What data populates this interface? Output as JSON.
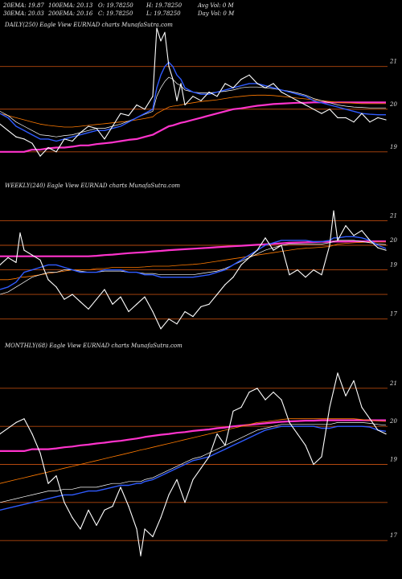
{
  "header": {
    "row1": [
      "20EMA: 19.87",
      "100EMA: 20.13",
      "O: 19.78250",
      "H: 19.78250",
      "Avg Vol: 0  M"
    ],
    "row2": [
      "30EMA: 20.03",
      "200EMA: 20.16",
      "C: 19.78250",
      "L: 19.78250",
      "Day Vol: 0  M"
    ]
  },
  "colors": {
    "background": "#000000",
    "price": "#ffffff",
    "ema_fast": "#2f5bff",
    "ema_mid": "#ffffff",
    "ema_slow": "#ff7a00",
    "ema_long": "#ff33cc",
    "grid": "#b4480e"
  },
  "chart_data": [
    {
      "type": "line",
      "title": "DAILY(250) Eagle  View  EURNAD charts MunafaSutra.com",
      "yticks": [
        "21",
        "20",
        "19"
      ],
      "ylim": [
        18.6,
        21.9
      ],
      "x": [
        0,
        10,
        20,
        30,
        40,
        50,
        60,
        70,
        80,
        90,
        100,
        110,
        120,
        130,
        140,
        150,
        160,
        170,
        180,
        190,
        195,
        200,
        205,
        210,
        215,
        220,
        225,
        230,
        240,
        250,
        260,
        270,
        280,
        290,
        300,
        310,
        320,
        330,
        340,
        350,
        360,
        370,
        380,
        390,
        400,
        410,
        420,
        430,
        440,
        450,
        460,
        470,
        480
      ],
      "series": [
        {
          "values": [
            19.65,
            19.5,
            19.35,
            19.3,
            19.2,
            18.9,
            19.1,
            19.0,
            19.3,
            19.25,
            19.45,
            19.6,
            19.55,
            19.3,
            19.6,
            19.9,
            19.85,
            20.1,
            20.0,
            20.3,
            21.9,
            21.6,
            21.8,
            21.0,
            20.7,
            20.2,
            20.6,
            20.1,
            20.3,
            20.2,
            20.4,
            20.3,
            20.6,
            20.5,
            20.7,
            20.8,
            20.6,
            20.5,
            20.6,
            20.4,
            20.3,
            20.2,
            20.1,
            20.0,
            19.9,
            20.0,
            19.8,
            19.8,
            19.7,
            19.9,
            19.7,
            19.8,
            19.75
          ]
        },
        {
          "values": [
            19.9,
            19.8,
            19.6,
            19.5,
            19.4,
            19.3,
            19.3,
            19.25,
            19.3,
            19.35,
            19.4,
            19.45,
            19.5,
            19.5,
            19.55,
            19.6,
            19.7,
            19.8,
            19.9,
            20.0,
            20.5,
            20.8,
            21.0,
            21.1,
            21.0,
            20.8,
            20.7,
            20.5,
            20.4,
            20.35,
            20.35,
            20.4,
            20.45,
            20.5,
            20.55,
            20.6,
            20.6,
            20.55,
            20.5,
            20.45,
            20.4,
            20.35,
            20.3,
            20.2,
            20.15,
            20.1,
            20.05,
            20.0,
            19.95,
            19.9,
            19.88,
            19.87,
            19.87
          ]
        },
        {
          "values": [
            19.95,
            19.85,
            19.7,
            19.6,
            19.5,
            19.4,
            19.38,
            19.35,
            19.38,
            19.4,
            19.45,
            19.5,
            19.55,
            19.55,
            19.6,
            19.65,
            19.72,
            19.8,
            19.88,
            19.95,
            20.3,
            20.5,
            20.65,
            20.75,
            20.7,
            20.6,
            20.55,
            20.45,
            20.4,
            20.38,
            20.38,
            20.4,
            20.42,
            20.45,
            20.5,
            20.52,
            20.52,
            20.5,
            20.48,
            20.45,
            20.42,
            20.38,
            20.33,
            20.25,
            20.2,
            20.15,
            20.1,
            20.07,
            20.05,
            20.04,
            20.03,
            20.03,
            20.03
          ]
        },
        {
          "values": [
            19.9,
            19.85,
            19.8,
            19.75,
            19.7,
            19.65,
            19.62,
            19.6,
            19.58,
            19.58,
            19.6,
            19.62,
            19.64,
            19.66,
            19.68,
            19.7,
            19.72,
            19.75,
            19.78,
            19.82,
            19.9,
            19.95,
            20.0,
            20.05,
            20.07,
            20.08,
            20.1,
            20.12,
            20.15,
            20.18,
            20.2,
            20.22,
            20.25,
            20.28,
            20.3,
            20.32,
            20.33,
            20.33,
            20.32,
            20.3,
            20.28,
            20.26,
            20.24,
            20.22,
            20.2,
            20.18,
            20.16,
            20.15,
            20.14,
            20.13,
            20.13,
            20.13,
            20.13
          ]
        },
        {
          "values": [
            19.0,
            19.0,
            19.0,
            19.0,
            19.05,
            19.05,
            19.08,
            19.1,
            19.1,
            19.12,
            19.15,
            19.15,
            19.18,
            19.2,
            19.22,
            19.25,
            19.28,
            19.3,
            19.35,
            19.4,
            19.45,
            19.5,
            19.55,
            19.6,
            19.62,
            19.65,
            19.68,
            19.7,
            19.75,
            19.8,
            19.85,
            19.9,
            19.95,
            20.0,
            20.02,
            20.05,
            20.08,
            20.1,
            20.12,
            20.13,
            20.14,
            20.15,
            20.15,
            20.16,
            20.16,
            20.16,
            20.16,
            20.16,
            20.16,
            20.16,
            20.16,
            20.16,
            20.16
          ]
        }
      ]
    },
    {
      "type": "line",
      "title": "WEEKLY(240) Eagle  View  EURNAD charts MunafaSutra.com",
      "yticks": [
        "21",
        "20",
        "19",
        "17"
      ],
      "ylim": [
        16.4,
        21.8
      ],
      "x": [
        0,
        10,
        20,
        25,
        30,
        40,
        50,
        60,
        70,
        80,
        90,
        100,
        110,
        120,
        130,
        140,
        150,
        160,
        170,
        180,
        190,
        200,
        210,
        220,
        230,
        240,
        250,
        260,
        270,
        280,
        290,
        300,
        310,
        320,
        330,
        340,
        350,
        360,
        370,
        380,
        390,
        400,
        410,
        415,
        420,
        430,
        440,
        450,
        460,
        470,
        480
      ],
      "series": [
        {
          "values": [
            19.2,
            19.5,
            19.3,
            20.5,
            19.8,
            19.6,
            19.4,
            18.6,
            18.3,
            17.8,
            18.0,
            17.7,
            17.4,
            17.8,
            18.2,
            17.6,
            17.9,
            17.3,
            17.6,
            17.9,
            17.3,
            16.6,
            17.0,
            16.8,
            17.3,
            17.1,
            17.5,
            17.6,
            18.0,
            18.4,
            18.7,
            19.2,
            19.5,
            19.8,
            20.3,
            19.8,
            20.0,
            18.8,
            19.0,
            18.7,
            19.0,
            18.8,
            20.0,
            21.4,
            20.2,
            20.8,
            20.4,
            20.6,
            20.2,
            19.9,
            19.8
          ]
        },
        {
          "values": [
            18.2,
            18.3,
            18.5,
            18.7,
            18.9,
            19.0,
            19.1,
            19.2,
            19.2,
            19.1,
            19.0,
            18.9,
            18.9,
            18.9,
            19.0,
            19.0,
            19.0,
            18.9,
            18.9,
            18.8,
            18.8,
            18.7,
            18.7,
            18.7,
            18.7,
            18.7,
            18.75,
            18.8,
            18.9,
            19.0,
            19.2,
            19.4,
            19.6,
            19.8,
            20.0,
            20.1,
            20.2,
            20.2,
            20.2,
            20.2,
            20.15,
            20.15,
            20.2,
            20.3,
            20.3,
            20.35,
            20.35,
            20.3,
            20.2,
            20.0,
            19.87
          ]
        },
        {
          "values": [
            18.0,
            18.1,
            18.3,
            18.4,
            18.5,
            18.7,
            18.8,
            18.9,
            18.9,
            19.0,
            19.0,
            18.95,
            18.9,
            18.9,
            18.95,
            18.95,
            18.95,
            18.9,
            18.9,
            18.85,
            18.85,
            18.8,
            18.8,
            18.8,
            18.8,
            18.8,
            18.85,
            18.9,
            18.95,
            19.05,
            19.2,
            19.35,
            19.5,
            19.65,
            19.8,
            19.9,
            20.0,
            20.05,
            20.05,
            20.05,
            20.05,
            20.05,
            20.1,
            20.15,
            20.2,
            20.2,
            20.2,
            20.15,
            20.1,
            20.05,
            20.03
          ]
        },
        {
          "values": [
            18.6,
            18.6,
            18.65,
            18.7,
            18.7,
            18.75,
            18.8,
            18.85,
            18.9,
            18.95,
            19.0,
            19.0,
            19.0,
            19.05,
            19.05,
            19.1,
            19.1,
            19.1,
            19.1,
            19.12,
            19.15,
            19.15,
            19.15,
            19.18,
            19.2,
            19.22,
            19.25,
            19.3,
            19.35,
            19.4,
            19.45,
            19.5,
            19.55,
            19.6,
            19.65,
            19.7,
            19.75,
            19.8,
            19.85,
            19.88,
            19.9,
            19.92,
            19.95,
            20.0,
            20.05,
            20.08,
            20.1,
            20.12,
            20.13,
            20.13,
            20.13
          ]
        },
        {
          "values": [
            19.55,
            19.55,
            19.55,
            19.55,
            19.55,
            19.55,
            19.55,
            19.55,
            19.55,
            19.55,
            19.55,
            19.55,
            19.55,
            19.57,
            19.6,
            19.62,
            19.65,
            19.68,
            19.7,
            19.72,
            19.75,
            19.77,
            19.8,
            19.82,
            19.84,
            19.86,
            19.88,
            19.9,
            19.92,
            19.94,
            19.96,
            19.98,
            20.0,
            20.02,
            20.04,
            20.06,
            20.08,
            20.1,
            20.11,
            20.12,
            20.13,
            20.14,
            20.14,
            20.15,
            20.15,
            20.15,
            20.16,
            20.16,
            20.16,
            20.16,
            20.16
          ]
        }
      ]
    },
    {
      "type": "line",
      "title": "MONTHLY(68) Eagle  View  EURNAD charts MunafaSutra.com",
      "yticks": [
        "21",
        "20",
        "19",
        "17"
      ],
      "ylim": [
        16.2,
        21.8
      ],
      "x": [
        0,
        20,
        30,
        40,
        50,
        60,
        70,
        80,
        90,
        100,
        110,
        120,
        130,
        140,
        150,
        160,
        170,
        175,
        180,
        190,
        200,
        210,
        220,
        230,
        240,
        250,
        260,
        270,
        280,
        290,
        300,
        310,
        320,
        330,
        340,
        350,
        360,
        370,
        380,
        390,
        400,
        410,
        420,
        430,
        440,
        450,
        460,
        470,
        480
      ],
      "series": [
        {
          "values": [
            19.8,
            20.1,
            20.2,
            19.8,
            19.3,
            18.5,
            18.7,
            18.0,
            17.6,
            17.3,
            17.8,
            17.4,
            17.8,
            17.9,
            18.4,
            17.9,
            17.3,
            16.6,
            17.3,
            17.1,
            17.6,
            18.2,
            18.6,
            18.0,
            18.6,
            18.9,
            19.2,
            19.8,
            19.5,
            20.4,
            20.5,
            20.9,
            21.0,
            20.7,
            20.9,
            20.7,
            20.1,
            19.8,
            19.5,
            19.0,
            19.2,
            20.5,
            21.4,
            20.8,
            21.2,
            20.5,
            20.2,
            19.9,
            19.8
          ]
        },
        {
          "values": [
            17.8,
            17.9,
            17.95,
            18.0,
            18.05,
            18.1,
            18.15,
            18.2,
            18.2,
            18.25,
            18.3,
            18.3,
            18.35,
            18.4,
            18.45,
            18.45,
            18.5,
            18.5,
            18.55,
            18.6,
            18.7,
            18.8,
            18.9,
            19.0,
            19.1,
            19.15,
            19.2,
            19.3,
            19.4,
            19.5,
            19.6,
            19.7,
            19.8,
            19.9,
            19.95,
            20.0,
            20.0,
            20.0,
            20.0,
            20.0,
            19.95,
            19.95,
            20.0,
            20.0,
            20.0,
            20.0,
            19.98,
            19.9,
            19.87
          ]
        },
        {
          "values": [
            18.0,
            18.1,
            18.15,
            18.2,
            18.25,
            18.3,
            18.3,
            18.35,
            18.35,
            18.4,
            18.4,
            18.4,
            18.45,
            18.5,
            18.5,
            18.55,
            18.55,
            18.55,
            18.6,
            18.65,
            18.75,
            18.85,
            18.95,
            19.05,
            19.15,
            19.2,
            19.3,
            19.4,
            19.5,
            19.6,
            19.7,
            19.8,
            19.9,
            19.95,
            20.0,
            20.05,
            20.05,
            20.05,
            20.05,
            20.05,
            20.05,
            20.05,
            20.1,
            20.1,
            20.1,
            20.1,
            20.08,
            20.05,
            20.03
          ]
        },
        {
          "values": [
            18.5,
            18.6,
            18.65,
            18.7,
            18.75,
            18.8,
            18.85,
            18.9,
            18.95,
            19.0,
            19.05,
            19.1,
            19.15,
            19.2,
            19.25,
            19.3,
            19.35,
            19.38,
            19.4,
            19.45,
            19.5,
            19.55,
            19.6,
            19.65,
            19.7,
            19.75,
            19.8,
            19.85,
            19.9,
            19.95,
            20.0,
            20.05,
            20.1,
            20.12,
            20.15,
            20.18,
            20.2,
            20.2,
            20.2,
            20.2,
            20.2,
            20.2,
            20.2,
            20.2,
            20.2,
            20.18,
            20.16,
            20.14,
            20.13
          ]
        },
        {
          "values": [
            19.35,
            19.35,
            19.35,
            19.4,
            19.4,
            19.4,
            19.42,
            19.45,
            19.47,
            19.5,
            19.52,
            19.55,
            19.57,
            19.6,
            19.62,
            19.65,
            19.68,
            19.7,
            19.72,
            19.75,
            19.78,
            19.8,
            19.83,
            19.85,
            19.88,
            19.9,
            19.92,
            19.95,
            19.97,
            20.0,
            20.02,
            20.04,
            20.06,
            20.08,
            20.1,
            20.12,
            20.13,
            20.14,
            20.15,
            20.15,
            20.16,
            20.16,
            20.16,
            20.16,
            20.16,
            20.16,
            20.16,
            20.16,
            20.16
          ]
        }
      ]
    }
  ]
}
